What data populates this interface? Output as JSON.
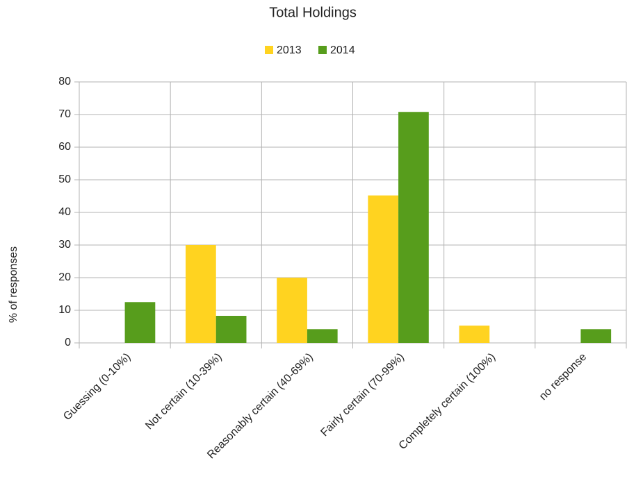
{
  "chart_data": {
    "type": "bar",
    "title": "Total Holdings",
    "y_label": "% of responses",
    "categories": [
      "Guessing (0-10%)",
      "Not certain (10-39%)",
      "Reasonably certain (40-69%)",
      "Fairly certain (70-99%)",
      "Completely certain (100%)",
      "no response"
    ],
    "series": [
      {
        "name": "2013",
        "color": "#ffd320",
        "values": [
          0,
          30,
          20,
          45.2,
          5.3,
          0
        ]
      },
      {
        "name": "2014",
        "color": "#579d1c",
        "values": [
          12.5,
          8.3,
          4.2,
          70.8,
          0,
          4.2
        ]
      }
    ],
    "ylim": [
      0,
      80
    ],
    "yticks": [
      0,
      10,
      20,
      30,
      40,
      50,
      60,
      70,
      80
    ],
    "grid": true,
    "legend": "top"
  }
}
